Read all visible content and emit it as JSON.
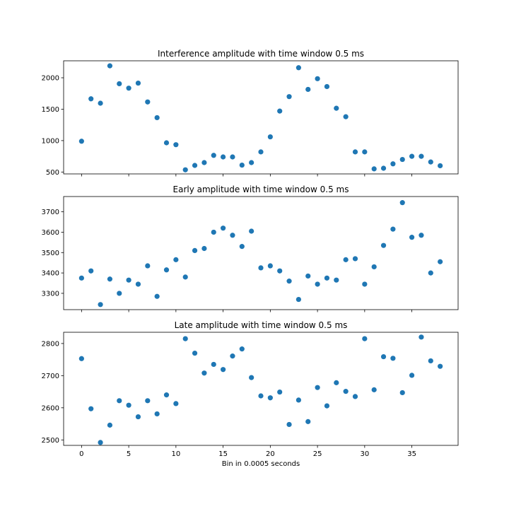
{
  "figure": {
    "xlabel": "Bin in 0.0005 seconds",
    "marker_color": "#1f77b4",
    "x_ticks": [
      0,
      5,
      10,
      15,
      20,
      25,
      30,
      35
    ],
    "xlim": [
      -1.9,
      39.9
    ]
  },
  "chart_data": [
    {
      "type": "scatter",
      "title": "Interference amplitude with time window 0.5 ms",
      "ylim": [
        470,
        2270
      ],
      "y_ticks": [
        500,
        1000,
        1500,
        2000
      ],
      "x": [
        0,
        1,
        2,
        3,
        4,
        5,
        6,
        7,
        8,
        9,
        10,
        11,
        12,
        13,
        14,
        15,
        16,
        17,
        18,
        19,
        20,
        21,
        22,
        23,
        24,
        25,
        26,
        27,
        28,
        29,
        30,
        31,
        32,
        33,
        34,
        35,
        36,
        37,
        38
      ],
      "y": [
        990,
        1665,
        1595,
        2190,
        1905,
        1835,
        1915,
        1615,
        1365,
        965,
        935,
        535,
        605,
        650,
        765,
        740,
        740,
        610,
        650,
        820,
        1060,
        1470,
        1700,
        2160,
        1815,
        1985,
        1860,
        1515,
        1380,
        820,
        820,
        550,
        560,
        630,
        700,
        750,
        750,
        660,
        600
      ]
    },
    {
      "type": "scatter",
      "title": "Early amplitude with time window 0.5 ms",
      "ylim": [
        3220,
        3775
      ],
      "y_ticks": [
        3300,
        3400,
        3500,
        3600,
        3700
      ],
      "x": [
        0,
        1,
        2,
        3,
        4,
        5,
        6,
        7,
        8,
        9,
        10,
        11,
        12,
        13,
        14,
        15,
        16,
        17,
        18,
        19,
        20,
        21,
        22,
        23,
        24,
        25,
        26,
        27,
        28,
        29,
        30,
        31,
        32,
        33,
        34,
        35,
        36,
        37,
        38
      ],
      "y": [
        3375,
        3410,
        3245,
        3370,
        3300,
        3365,
        3345,
        3435,
        3285,
        3415,
        3465,
        3380,
        3510,
        3520,
        3600,
        3620,
        3585,
        3530,
        3605,
        3425,
        3435,
        3410,
        3360,
        3270,
        3385,
        3345,
        3375,
        3365,
        3465,
        3470,
        3345,
        3430,
        3535,
        3615,
        3745,
        3575,
        3585,
        3400,
        3455
      ]
    },
    {
      "type": "scatter",
      "title": "Late amplitude with time window 0.5 ms",
      "ylim": [
        2483,
        2835
      ],
      "y_ticks": [
        2500,
        2600,
        2700,
        2800
      ],
      "x": [
        0,
        1,
        2,
        3,
        4,
        5,
        6,
        7,
        8,
        9,
        10,
        11,
        12,
        13,
        14,
        15,
        16,
        17,
        18,
        19,
        20,
        21,
        22,
        23,
        24,
        25,
        26,
        27,
        28,
        29,
        30,
        31,
        32,
        33,
        34,
        35,
        36,
        37,
        38
      ],
      "y": [
        2753,
        2597,
        2492,
        2546,
        2622,
        2608,
        2572,
        2622,
        2581,
        2640,
        2613,
        2815,
        2770,
        2708,
        2735,
        2719,
        2761,
        2783,
        2694,
        2637,
        2631,
        2649,
        2548,
        2624,
        2557,
        2663,
        2606,
        2678,
        2651,
        2635,
        2815,
        2656,
        2759,
        2754,
        2647,
        2701,
        2820,
        2746,
        2729
      ]
    }
  ]
}
